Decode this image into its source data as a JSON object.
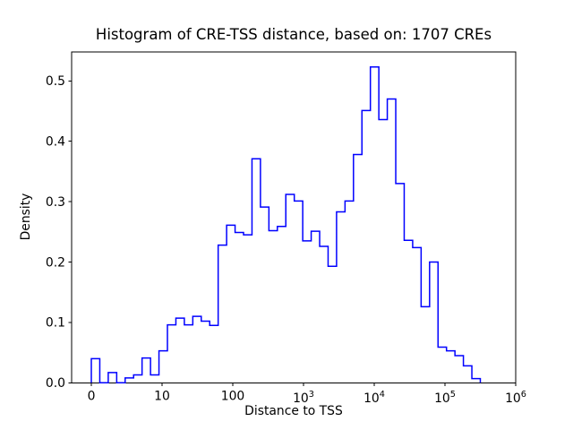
{
  "figure": {
    "title": "Histogram of CRE-TSS distance, based on: 1707 CREs",
    "xlabel": "Distance to TSS",
    "ylabel": "Density",
    "background_color": "#ffffff",
    "text_color": "#000000"
  },
  "chart_data": {
    "type": "histogram",
    "histtype": "step",
    "title": "Histogram of CRE-TSS distance, based on: 1707 CREs",
    "xlabel": "Distance to TSS",
    "ylabel": "Density",
    "n_samples": 1707,
    "line_color": "#0000ff",
    "axis_color": "#000000",
    "grid": false,
    "legend": null,
    "x_scale": "symlog",
    "x_scale_note": "linear from 0 to 10 occupying one decade width, log10 from 10 to 1e6",
    "xlim_u": [
      -0.278,
      6.0
    ],
    "ylim": [
      0,
      0.5478
    ],
    "bin_start_u": 0,
    "bin_width_u": 0.11956,
    "n_bins": 46,
    "densities": [
      0.04,
      0.0,
      0.017,
      0.0,
      0.008,
      0.013,
      0.041,
      0.013,
      0.053,
      0.096,
      0.107,
      0.096,
      0.11,
      0.102,
      0.095,
      0.228,
      0.261,
      0.249,
      0.245,
      0.371,
      0.291,
      0.252,
      0.259,
      0.312,
      0.301,
      0.235,
      0.251,
      0.226,
      0.193,
      0.283,
      0.301,
      0.378,
      0.451,
      0.523,
      0.436,
      0.47,
      0.33,
      0.236,
      0.224,
      0.126,
      0.2,
      0.059,
      0.053,
      0.045,
      0.028,
      0.007
    ],
    "x_ticks": [
      {
        "label": "0",
        "u": 0
      },
      {
        "label": "10",
        "u": 1
      },
      {
        "label": "100",
        "u": 2
      },
      {
        "base": "10",
        "exp": "3",
        "u": 3
      },
      {
        "base": "10",
        "exp": "4",
        "u": 4
      },
      {
        "base": "10",
        "exp": "5",
        "u": 5
      },
      {
        "base": "10",
        "exp": "6",
        "u": 6
      }
    ],
    "y_ticks": [
      {
        "label": "0.0",
        "value": 0.0
      },
      {
        "label": "0.1",
        "value": 0.1
      },
      {
        "label": "0.2",
        "value": 0.2
      },
      {
        "label": "0.3",
        "value": 0.3
      },
      {
        "label": "0.4",
        "value": 0.4
      },
      {
        "label": "0.5",
        "value": 0.5
      }
    ]
  }
}
